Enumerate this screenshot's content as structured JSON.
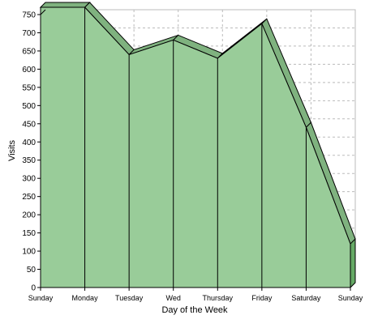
{
  "chart_data": {
    "type": "area",
    "style": "3d",
    "title": "",
    "xlabel": "Day of the Week",
    "ylabel": "Visits",
    "categories": [
      "Sunday",
      "Monday",
      "Tuesday",
      "Wed",
      "Thursday",
      "Friday",
      "Saturday",
      "Sunday"
    ],
    "series": [
      {
        "values": [
          770,
          770,
          640,
          680,
          630,
          725,
          440,
          120
        ]
      }
    ],
    "ylim": [
      0,
      750
    ],
    "ytick_step": 50,
    "grid": true,
    "grid_style": "dashed",
    "legend": "none",
    "colors": {
      "fill": "#99cc99",
      "fill_top": "#7fb27f",
      "fill_side": "#66aa66",
      "stroke": "#000000",
      "grid": "#bbbbbb",
      "axis": "#000000"
    }
  }
}
